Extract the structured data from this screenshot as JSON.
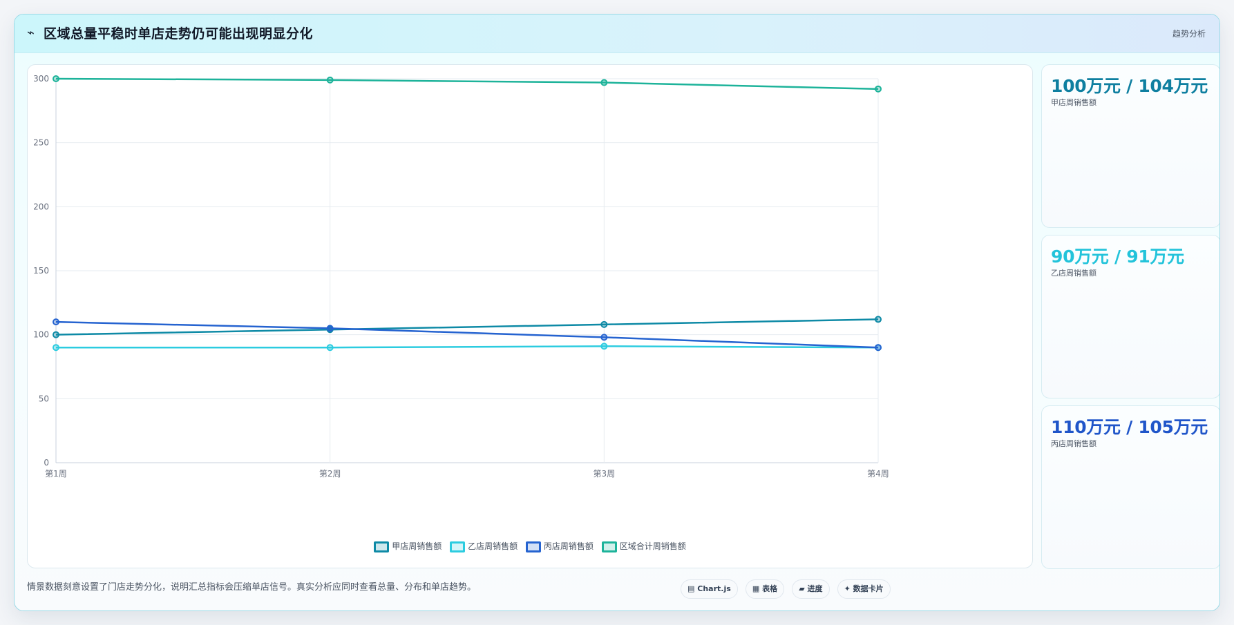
{
  "header": {
    "icon": "trend-icon",
    "icon_glyph": "⌁",
    "title": "区域总量平稳时单店走势仍可能出现明显分化",
    "tag": "趋势分析"
  },
  "chart_data": {
    "type": "line",
    "categories": [
      "第1周",
      "第2周",
      "第3周",
      "第4周"
    ],
    "ylim": [
      0,
      300
    ],
    "yticks": [
      0,
      50,
      100,
      150,
      200,
      250,
      300
    ],
    "grid": true,
    "legend_position": "bottom",
    "series": [
      {
        "name": "甲店周销售额",
        "color": "#0e8aa6",
        "values": [
          100,
          104,
          108,
          112
        ]
      },
      {
        "name": "乙店周销售额",
        "color": "#2ccce0",
        "values": [
          90,
          90,
          91,
          90
        ]
      },
      {
        "name": "丙店周销售额",
        "color": "#2563d0",
        "values": [
          110,
          105,
          98,
          90
        ]
      },
      {
        "name": "区域合计周销售额",
        "color": "#1db39a",
        "values": [
          300,
          299,
          297,
          292
        ]
      }
    ]
  },
  "cards": [
    {
      "value": "100万元 / 104万元",
      "label": "甲店周销售额",
      "color": "#0e7fa0"
    },
    {
      "value": "90万元 / 91万元",
      "label": "乙店周销售额",
      "color": "#22c3da"
    },
    {
      "value": "110万元 / 105万元",
      "label": "丙店周销售额",
      "color": "#1f55c9"
    }
  ],
  "footnote": "情景数据刻意设置了门店走势分化，说明汇总指标会压缩单店信号。真实分析应同时查看总量、分布和单店趋势。",
  "chips": [
    {
      "glyph": "▤",
      "label": "Chart.js"
    },
    {
      "glyph": "▦",
      "label": "表格"
    },
    {
      "glyph": "▰",
      "label": "进度"
    },
    {
      "glyph": "✦",
      "label": "数据卡片"
    }
  ]
}
